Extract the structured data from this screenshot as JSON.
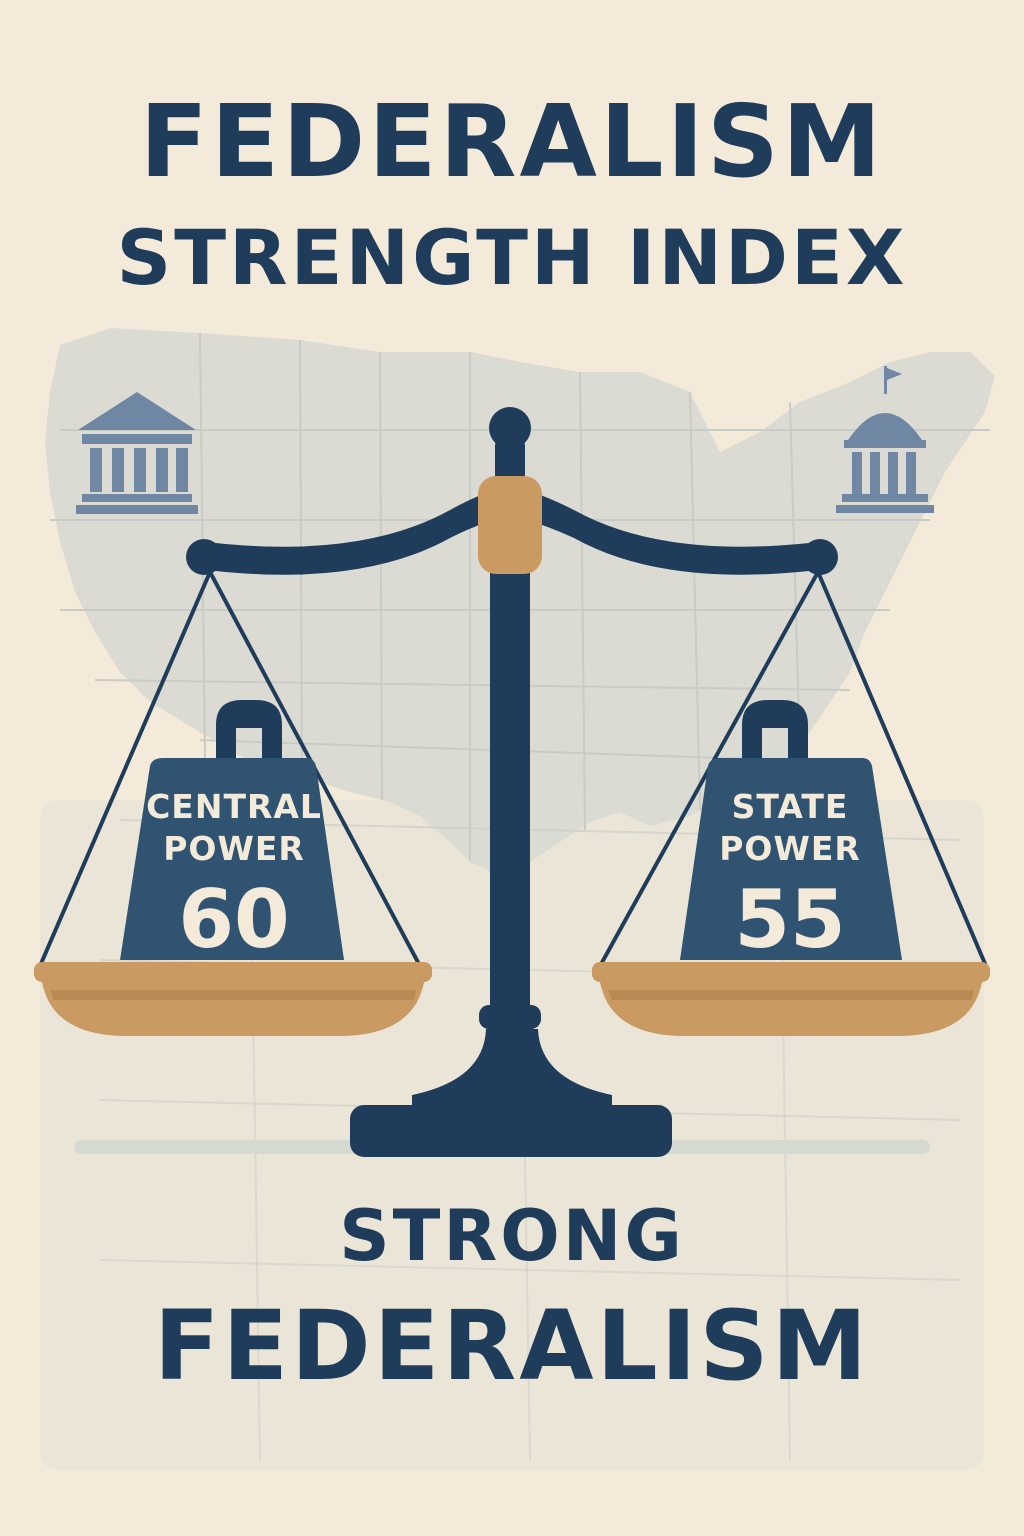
{
  "title": {
    "line1": "FEDERALISM",
    "line2": "STRENGTH INDEX"
  },
  "weights": {
    "left": {
      "label_line1": "CENTRAL",
      "label_line2": "POWER",
      "value": "60"
    },
    "right": {
      "label_line1": "STATE",
      "label_line2": "POWER",
      "value": "55"
    }
  },
  "verdict": {
    "line1": "STRONG",
    "line2": "FEDERALISM"
  },
  "icons": {
    "left": "federal-building-icon",
    "right": "capitol-dome-icon",
    "scale": "balance-scale-icon"
  },
  "colors": {
    "background": "#f4ead9",
    "navy": "#1f3d5a",
    "bronze": "#c99a62",
    "map": "#d9dad3",
    "icon_blue": "#6f87a3"
  }
}
